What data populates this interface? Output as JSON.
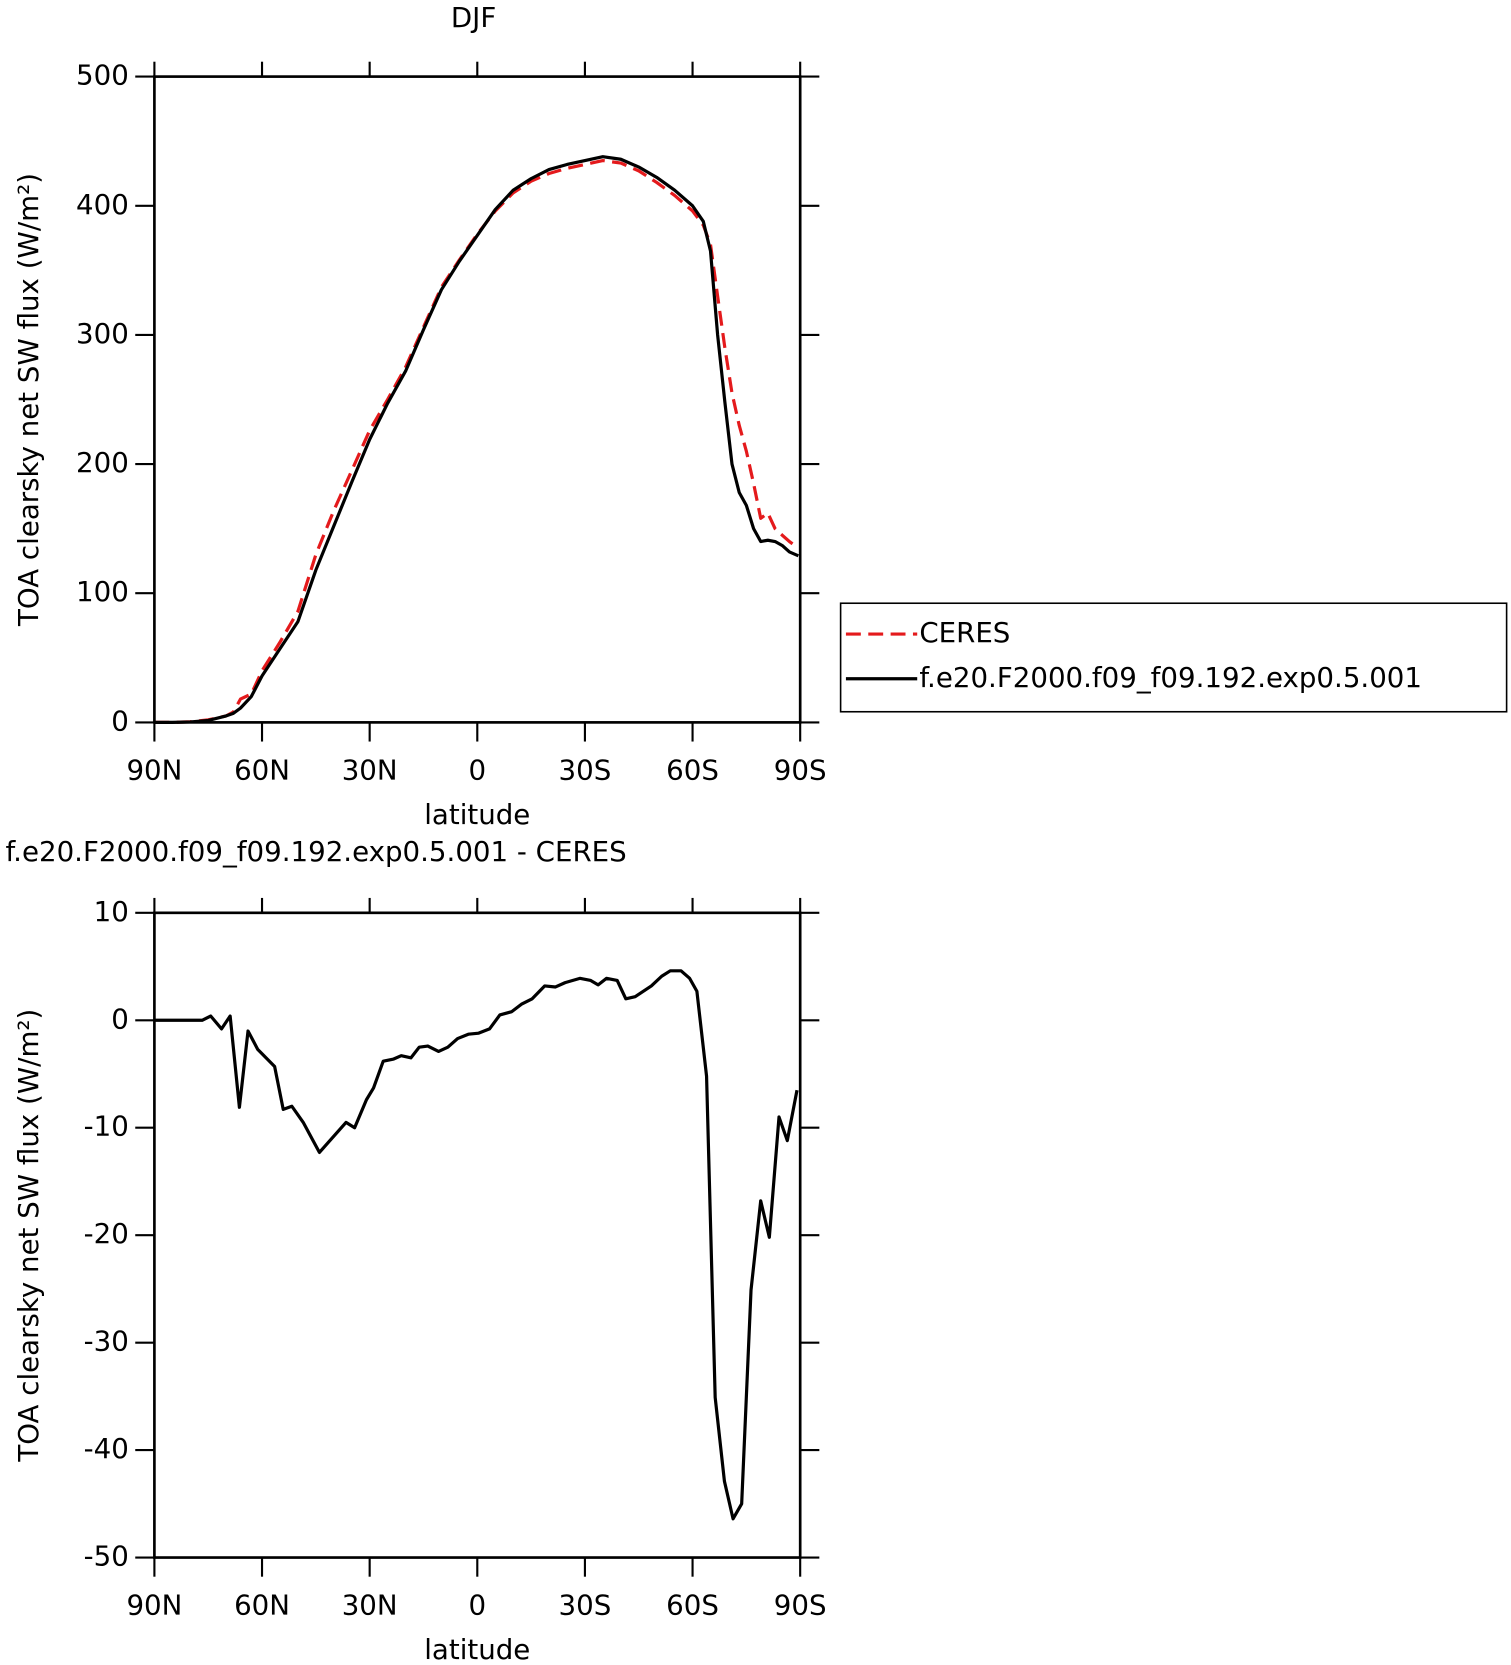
{
  "chart_data": [
    {
      "type": "line",
      "title": "DJF",
      "x_label": "latitude",
      "y_label": "TOA clearsky net SW flux (W/m²)",
      "x": [
        90,
        85,
        80,
        75,
        70,
        68,
        66,
        63,
        60,
        55,
        50,
        45,
        40,
        35,
        30,
        25,
        20,
        15,
        10,
        5,
        0,
        -5,
        -10,
        -15,
        -20,
        -25,
        -30,
        -35,
        -40,
        -45,
        -50,
        -55,
        -60,
        -63,
        -65,
        -67,
        -69,
        -71,
        -73,
        -75,
        -77,
        -79,
        -81,
        -83,
        -85,
        -87,
        -89.5
      ],
      "series": [
        {
          "name": "CERES",
          "color": "#e41a1c",
          "line_style": "dashed",
          "values": [
            0,
            0,
            0.5,
            2,
            5,
            8,
            18,
            22,
            40,
            62,
            86,
            130,
            164,
            195,
            226,
            250,
            275,
            306,
            337,
            358,
            378,
            396,
            410,
            419,
            425,
            429,
            432,
            435,
            433,
            427,
            418,
            408,
            396,
            385,
            370,
            330,
            290,
            255,
            230,
            210,
            185,
            158,
            162,
            150,
            145,
            140,
            135
          ]
        },
        {
          "name": "f.e20.F2000.f09_f09.192.exp0.5.001",
          "color": "#000000",
          "line_style": "solid",
          "values": [
            0,
            0,
            0.3,
            1.5,
            5,
            7,
            11,
            20,
            36,
            57,
            78,
            118,
            152,
            186,
            219,
            247,
            272,
            304,
            335,
            357,
            377,
            397,
            412,
            421,
            428,
            432,
            435,
            438,
            436,
            430,
            422,
            412,
            400,
            388,
            365,
            300,
            248,
            200,
            178,
            168,
            150,
            140,
            141,
            140,
            137,
            132,
            129
          ]
        }
      ],
      "xlim": [
        90,
        -90
      ],
      "xticks": [
        {
          "value": 90,
          "label": "90N"
        },
        {
          "value": 60,
          "label": "60N"
        },
        {
          "value": 30,
          "label": "30N"
        },
        0,
        {
          "value": -30,
          "label": "30S"
        },
        {
          "value": -60,
          "label": "60S"
        },
        {
          "value": -90,
          "label": "90S"
        }
      ],
      "ylim": [
        0,
        500
      ],
      "yticks": [
        0,
        100,
        200,
        300,
        400,
        500
      ],
      "legend": "right"
    },
    {
      "type": "line",
      "title": "f.e20.F2000.f09_f09.192.exp0.5.001 - CERES",
      "x_label": "latitude",
      "y_label": "TOA clearsky net SW flux (W/m²)",
      "x": [
        90,
        76.7,
        74.3,
        71.3,
        68.9,
        66.3,
        63.9,
        61.2,
        56.5,
        54.1,
        51.7,
        48.5,
        44,
        36.6,
        34.2,
        30.9,
        28.9,
        26.2,
        23.3,
        21.2,
        18.5,
        16.2,
        13.8,
        10.8,
        8.2,
        5.5,
        2.5,
        -0.4,
        -3.4,
        -6.3,
        -9.6,
        -12.3,
        -15.3,
        -18.8,
        -21.8,
        -24.5,
        -28.6,
        -31.6,
        -33.7,
        -36,
        -39,
        -41.4,
        -44,
        -48.5,
        -51.4,
        -53.8,
        -56.8,
        -59.2,
        -61.2,
        -63.9,
        -66.3,
        -68.9,
        -71.3,
        -73.7,
        -76.3,
        -79,
        -81.4,
        -84.1,
        -86.4,
        -89.1
      ],
      "series": [
        {
          "color": "#000000",
          "line_style": "solid",
          "values": [
            0,
            0,
            0.4,
            -0.8,
            0.4,
            -8.1,
            -1,
            -2.7,
            -4.3,
            -8.3,
            -8,
            -9.5,
            -12.3,
            -9.5,
            -10,
            -7.4,
            -6.3,
            -3.8,
            -3.6,
            -3.3,
            -3.5,
            -2.5,
            -2.4,
            -2.9,
            -2.5,
            -1.7,
            -1.3,
            -1.2,
            -0.8,
            0.5,
            0.8,
            1.5,
            2,
            3.2,
            3.1,
            3.5,
            3.9,
            3.7,
            3.3,
            3.9,
            3.7,
            2,
            2.2,
            3.2,
            4.1,
            4.6,
            4.6,
            3.9,
            2.7,
            -5.2,
            -35.1,
            -42.9,
            -46.4,
            -45,
            -25.1,
            -16.8,
            -20.2,
            -9,
            -11.2,
            -6.5
          ]
        }
      ],
      "xlim": [
        90,
        -90
      ],
      "xticks": [
        {
          "value": 90,
          "label": "90N"
        },
        {
          "value": 60,
          "label": "60N"
        },
        {
          "value": 30,
          "label": "30N"
        },
        0,
        {
          "value": -30,
          "label": "30S"
        },
        {
          "value": -60,
          "label": "60S"
        },
        {
          "value": -90,
          "label": "90S"
        }
      ],
      "ylim": [
        -50,
        10
      ],
      "yticks": [
        -50,
        -40,
        -30,
        -20,
        -10,
        0,
        10
      ]
    }
  ]
}
